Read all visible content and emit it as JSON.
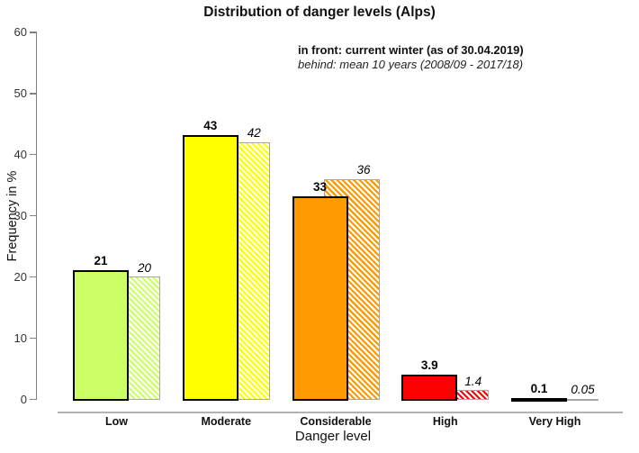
{
  "chart_data": {
    "type": "bar",
    "title": "Distribution of danger levels (Alps)",
    "xlabel": "Danger level",
    "ylabel": "Frequency in %",
    "ylim": [
      0,
      60
    ],
    "yticks": [
      0,
      10,
      20,
      30,
      40,
      50,
      60
    ],
    "grid": false,
    "legend_position": "top-right-inside",
    "annotations": {
      "front_series_note": "in front: current winter (as of 30.04.2019)",
      "behind_series_note": "behind: mean 10 years (2008/09 - 2017/18)"
    },
    "categories": [
      "Low",
      "Moderate",
      "Considerable",
      "High",
      "Very High"
    ],
    "category_colors": [
      "#ccff66",
      "#ffff00",
      "#ff9900",
      "#ff0000",
      "#ff0000"
    ],
    "series": [
      {
        "name": "current winter (as of 30.04.2019)",
        "position": "front",
        "style": "solid",
        "values": [
          21,
          43,
          33,
          3.9,
          0.1
        ]
      },
      {
        "name": "mean 10 years (2008/09 - 2017/18)",
        "position": "behind",
        "style": "hatched",
        "values": [
          20,
          42,
          36,
          1.4,
          0.05
        ]
      }
    ]
  }
}
